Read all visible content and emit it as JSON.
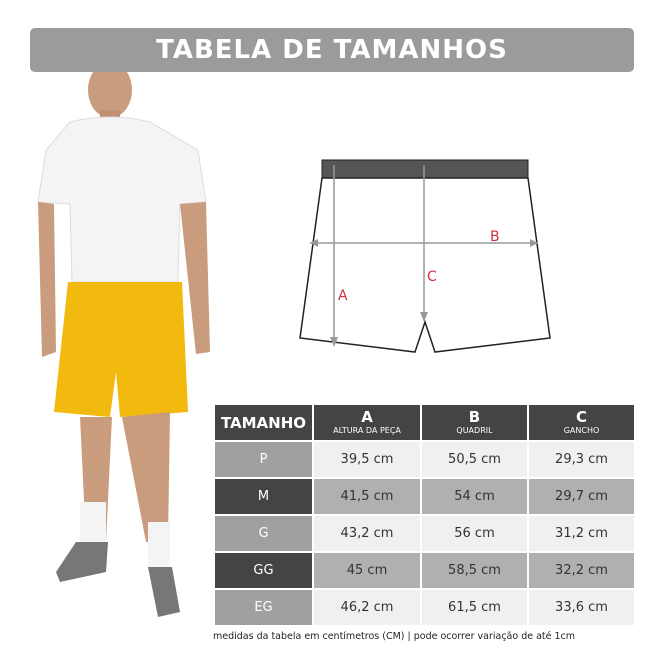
{
  "title": "TABELA DE TAMANHOS",
  "colors": {
    "title_bar": "#9b9b9b",
    "header": "#444444",
    "shorts": "#f2b90f",
    "label_red": "#d0303a"
  },
  "diagram": {
    "labels": [
      "A",
      "B",
      "C"
    ]
  },
  "table": {
    "headers": [
      {
        "letter": "TAMANHO",
        "sub": ""
      },
      {
        "letter": "A",
        "sub": "ALTURA DA PEÇA"
      },
      {
        "letter": "B",
        "sub": "QUADRIL"
      },
      {
        "letter": "C",
        "sub": "GANCHO"
      }
    ],
    "rows": [
      [
        "P",
        "39,5 cm",
        "50,5 cm",
        "29,3 cm"
      ],
      [
        "M",
        "41,5 cm",
        "54 cm",
        "29,7 cm"
      ],
      [
        "G",
        "43,2 cm",
        "56 cm",
        "31,2 cm"
      ],
      [
        "GG",
        "45 cm",
        "58,5 cm",
        "32,2 cm"
      ],
      [
        "EG",
        "46,2 cm",
        "61,5 cm",
        "33,6 cm"
      ]
    ]
  },
  "note": "medidas da tabela em centímetros (CM) | pode ocorrer variação de até 1cm"
}
